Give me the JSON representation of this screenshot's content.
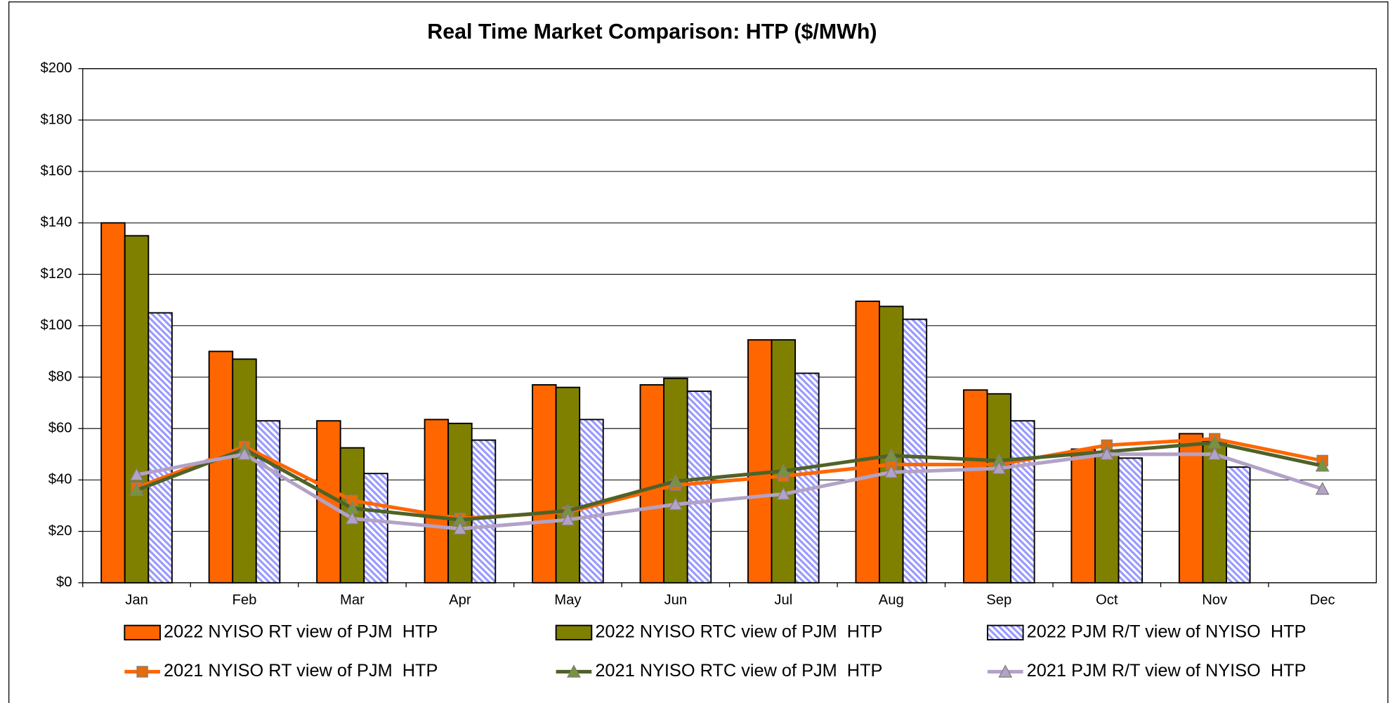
{
  "chart_data": {
    "type": "bar",
    "title": "Real Time Market Comparison: HTP ($/MWh)",
    "categories": [
      "Jan",
      "Feb",
      "Mar",
      "Apr",
      "May",
      "Jun",
      "Jul",
      "Aug",
      "Sep",
      "Oct",
      "Nov",
      "Dec"
    ],
    "ylim": [
      0,
      200
    ],
    "yticks": [
      {
        "value": 0,
        "label": "$0"
      },
      {
        "value": 20,
        "label": "$20"
      },
      {
        "value": 40,
        "label": "$40"
      },
      {
        "value": 60,
        "label": "$60"
      },
      {
        "value": 80,
        "label": "$80"
      },
      {
        "value": 100,
        "label": "$100"
      },
      {
        "value": 120,
        "label": "$120"
      },
      {
        "value": 140,
        "label": "$140"
      },
      {
        "value": 160,
        "label": "$160"
      },
      {
        "value": 180,
        "label": "$180"
      },
      {
        "value": 200,
        "label": "$200"
      }
    ],
    "grid": true,
    "legend": "bottom",
    "series": [
      {
        "name": "2022 NYISO RT view of PJM  HTP",
        "type": "bar",
        "color": "#ff6600",
        "values": [
          140,
          90,
          63,
          63.5,
          77,
          77,
          94.5,
          109.5,
          75,
          52,
          58,
          null
        ]
      },
      {
        "name": "2022 NYISO RTC view of PJM  HTP",
        "type": "bar",
        "color": "#808000",
        "values": [
          135,
          87,
          52.5,
          62,
          76,
          79.5,
          94.5,
          107.5,
          73.5,
          51,
          55,
          null
        ]
      },
      {
        "name": "2022 PJM R/T view of NYISO  HTP",
        "type": "bar",
        "color": "#9999ff",
        "pattern": "hatch",
        "values": [
          105,
          63,
          42.5,
          55.5,
          63.5,
          74.5,
          81.5,
          102.5,
          63,
          48.5,
          45,
          null
        ]
      },
      {
        "name": "2021 NYISO RT view of PJM  HTP",
        "type": "line",
        "color": "#ff6600",
        "marker": "square",
        "marker_color": "#e46c0a",
        "values": [
          37,
          53,
          32,
          25,
          27.5,
          38,
          41.5,
          46,
          46,
          53.5,
          56,
          47.5
        ]
      },
      {
        "name": "2021 NYISO RTC view of PJM  HTP",
        "type": "line",
        "color": "#4f6228",
        "marker": "triangle",
        "marker_color": "#77933c",
        "values": [
          36,
          52,
          29,
          24.5,
          28,
          39.5,
          43.5,
          49.5,
          47.5,
          51,
          54.5,
          45.5
        ]
      },
      {
        "name": "2021 PJM R/T view of NYISO  HTP",
        "type": "line",
        "color": "#b3a2c7",
        "marker": "triangle",
        "marker_color": "#b3a2c7",
        "values": [
          42,
          50,
          25,
          21,
          24.5,
          30.5,
          34.5,
          43,
          44.5,
          50,
          50,
          36.5
        ]
      }
    ]
  }
}
